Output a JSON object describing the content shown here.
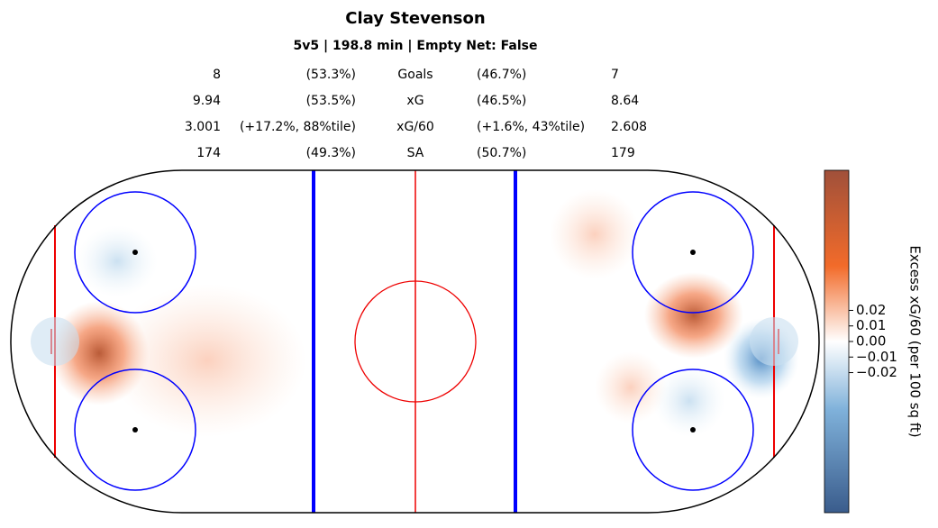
{
  "chart_data": {
    "type": "rink-heatmap",
    "title": "Clay Stevenson",
    "subtitle": "5v5 | 198.8 min | Empty Net: False",
    "stats": [
      {
        "left": 8,
        "left_pct": "(53.3%)",
        "label": "Goals",
        "right_pct": "(46.7%)",
        "right": 7
      },
      {
        "left": 9.94,
        "left_pct": "(53.5%)",
        "label": "xG",
        "right_pct": "(46.5%)",
        "right": 8.64
      },
      {
        "left": 3.001,
        "left_pct": "(+17.2%, 88%tile)",
        "label": "xG/60",
        "right_pct": "(+1.6%, 43%tile)",
        "right": 2.608
      },
      {
        "left": 174,
        "left_pct": "(49.3%)",
        "label": "SA",
        "right_pct": "(50.7%)",
        "right": 179
      }
    ],
    "colorbar_label": "Excess xG/60 (per 100 sq ft)",
    "clim": [
      -0.11,
      0.11
    ],
    "cticks": [
      {
        "value": -0.02,
        "label": "−0.02"
      },
      {
        "value": -0.01,
        "label": "−0.01"
      },
      {
        "value": 0,
        "label": "0.00"
      },
      0.01,
      0.02
    ]
  }
}
